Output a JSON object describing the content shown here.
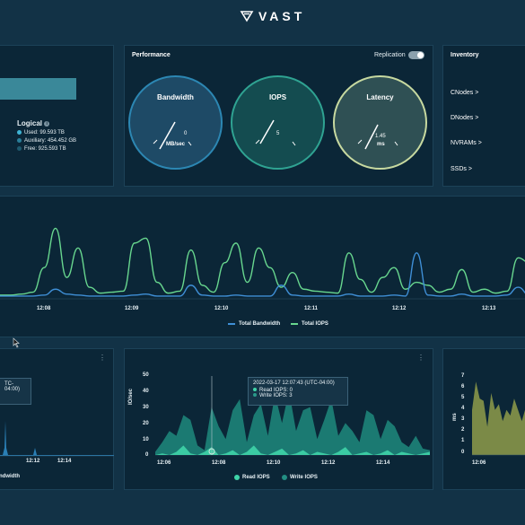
{
  "header": {
    "brand": "VAST"
  },
  "capacity": {
    "logical_title": "Logical",
    "info_icon": "info-icon",
    "items": [
      {
        "label": "Used: 99.593 TB",
        "color": "#3fb4d4"
      },
      {
        "label": "Auxiliary: 454.452 GB",
        "color": "#2a7f9a"
      },
      {
        "label": "Free: 925.593 TB",
        "color": "#1e5a6e"
      }
    ]
  },
  "performance": {
    "title": "Performance",
    "replication_label": "Replication",
    "gauges": [
      {
        "label": "Bandwidth",
        "value": "0",
        "unit": "MB/sec",
        "color": "#1e4a66",
        "ring": "#2c87b3"
      },
      {
        "label": "IOPS",
        "value": "5",
        "unit": "",
        "color": "#144c50",
        "ring": "#2fa392"
      },
      {
        "label": "Latency",
        "value": "1.45",
        "unit": "ms",
        "color": "#2f5054",
        "ring": "#c7d9a0"
      }
    ]
  },
  "inventory": {
    "title": "Inventory",
    "items": [
      "CNodes >",
      "DNodes >",
      "NVRAMs >",
      "SSDs >"
    ]
  },
  "main_chart": {
    "ticks": [
      "12:08",
      "12:09",
      "12:10",
      "12:11",
      "12:12",
      "12:13"
    ],
    "legend": [
      "Total Bandwidth",
      "Total IOPS"
    ]
  },
  "bw_panel": {
    "tooltip_partial": "TC-04:00)",
    "ticks": [
      "12:12",
      "12:14"
    ],
    "legend_partial": "ndwidth"
  },
  "iops_panel": {
    "y_label": "IO/sec",
    "y_ticks": [
      "50",
      "40",
      "30",
      "20",
      "10",
      "0"
    ],
    "x_ticks": [
      "12:06",
      "12:08",
      "12:10",
      "12:12",
      "12:14"
    ],
    "tooltip": {
      "title": "2022-03-17 12:07:43 (UTC-04:00)",
      "read": "Read IOPS: 0",
      "write": "Write IOPS: 3"
    },
    "legend": [
      "Read IOPS",
      "Write IOPS"
    ]
  },
  "lat_panel": {
    "y_label": "ms",
    "y_ticks": [
      "7",
      "6",
      "5",
      "4",
      "3",
      "2",
      "1",
      "0"
    ],
    "x_ticks": [
      "12:06"
    ]
  },
  "chart_data": [
    {
      "type": "line",
      "x_ticks": [
        "12:08",
        "12:09",
        "12:10",
        "12:11",
        "12:12",
        "12:13"
      ],
      "series": [
        {
          "name": "Total IOPS",
          "values": [
            2,
            2,
            3,
            5,
            30,
            70,
            20,
            50,
            10,
            4,
            5,
            6,
            55,
            60,
            15,
            4,
            6,
            48,
            12,
            5,
            35,
            55,
            15,
            50,
            30,
            10,
            25,
            8,
            6,
            5,
            4,
            45,
            18,
            5,
            20,
            30,
            8,
            15,
            12,
            5,
            8,
            28,
            5,
            8,
            4,
            6,
            40,
            35
          ]
        },
        {
          "name": "Total Bandwidth",
          "values": [
            1,
            1,
            1,
            1,
            2,
            8,
            3,
            2,
            1,
            1,
            1,
            1,
            2,
            3,
            1,
            1,
            1,
            12,
            2,
            1,
            1,
            2,
            1,
            1,
            1,
            12,
            2,
            1,
            1,
            1,
            1,
            3,
            1,
            1,
            1,
            2,
            1,
            45,
            2,
            1,
            1,
            3,
            1,
            1,
            1,
            2,
            10,
            2
          ]
        }
      ],
      "legend": [
        "Total Bandwidth",
        "Total IOPS"
      ]
    },
    {
      "type": "area",
      "x_ticks": [
        "12:06",
        "12:08",
        "12:10",
        "12:12",
        "12:14"
      ],
      "y_ticks": [
        0,
        10,
        20,
        30,
        40,
        50
      ],
      "ylabel": "IO/sec",
      "series": [
        {
          "name": "Read IOPS",
          "values": [
            0,
            1,
            0,
            2,
            6,
            1,
            0,
            2,
            5,
            0,
            1,
            3,
            0,
            2,
            6,
            1,
            0,
            2,
            4,
            0,
            1,
            3,
            0,
            2,
            1,
            0,
            2,
            5,
            0,
            1,
            2,
            0,
            1,
            3,
            0,
            2,
            1,
            0,
            1,
            2
          ]
        },
        {
          "name": "Write IOPS",
          "values": [
            2,
            8,
            15,
            12,
            25,
            22,
            6,
            3,
            30,
            18,
            10,
            28,
            35,
            8,
            25,
            32,
            12,
            38,
            20,
            40,
            15,
            28,
            30,
            10,
            22,
            35,
            12,
            20,
            15,
            8,
            28,
            25,
            10,
            22,
            18,
            8,
            5,
            12,
            4,
            3
          ]
        }
      ],
      "legend": [
        "Read IOPS",
        "Write IOPS"
      ]
    },
    {
      "type": "area",
      "x_ticks": [
        "12:06"
      ],
      "y_ticks": [
        0,
        1,
        2,
        3,
        4,
        5,
        6,
        7
      ],
      "ylabel": "ms",
      "series": [
        {
          "name": "",
          "values": [
            4,
            6.5,
            5,
            4.8,
            2.5,
            5.5,
            4,
            4.5,
            3,
            4,
            3.5,
            5,
            4,
            3,
            4.2,
            3
          ]
        }
      ]
    }
  ]
}
